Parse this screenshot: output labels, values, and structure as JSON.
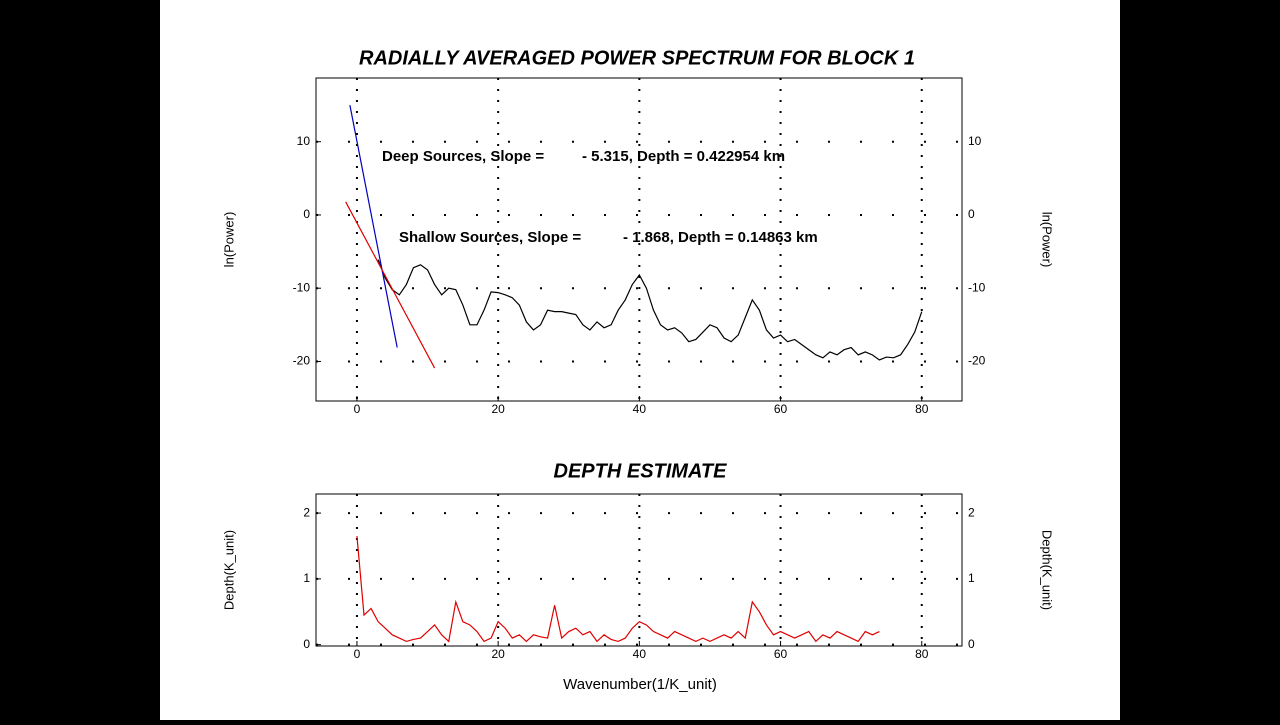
{
  "chart_data": [
    {
      "type": "line",
      "title": "RADIALLY AVERAGED POWER SPECTRUM FOR BLOCK 1",
      "y_label": "ln(Power)",
      "xlim": [
        -5.8,
        85.7
      ],
      "xticks": [
        0,
        20,
        40,
        60,
        80
      ],
      "ylim": [
        -25.4,
        18.7
      ],
      "yticks": [
        -20,
        -10,
        0,
        10
      ],
      "grid": true,
      "series": [
        {
          "color": "#000000",
          "x": [
            3,
            4,
            5,
            6,
            7,
            8,
            9,
            10,
            11,
            12,
            13,
            14,
            15,
            16,
            17,
            18,
            19,
            20,
            21,
            22,
            23,
            24,
            25,
            26,
            27,
            28,
            29,
            30,
            31,
            32,
            33,
            34,
            35,
            36,
            37,
            38,
            39,
            40,
            41,
            42,
            43,
            44,
            45,
            46,
            47,
            48,
            49,
            50,
            51,
            52,
            53,
            54,
            55,
            56,
            57,
            58,
            59,
            60,
            61,
            62,
            63,
            64,
            65,
            66,
            67,
            68,
            69,
            70,
            71,
            72,
            73,
            74,
            75,
            76,
            77,
            78,
            79,
            80
          ],
          "values": [
            -6.1,
            -8.6,
            -10.2,
            -10.9,
            -9.5,
            -7.2,
            -6.8,
            -7.5,
            -9.5,
            -10.9,
            -10,
            -10.2,
            -12.3,
            -15,
            -15,
            -13,
            -10.5,
            -10.6,
            -10.9,
            -11.3,
            -12.3,
            -14.6,
            -15.7,
            -15,
            -13,
            -13.2,
            -13.2,
            -13.4,
            -13.6,
            -15,
            -15.7,
            -14.6,
            -15.4,
            -15,
            -13,
            -11.6,
            -9.5,
            -8.2,
            -10,
            -13,
            -15,
            -15.7,
            -15.4,
            -16.1,
            -17.3,
            -17,
            -16,
            -15,
            -15.4,
            -16.8,
            -17.3,
            -16.4,
            -14,
            -11.6,
            -13,
            -15.7,
            -16.8,
            -16.4,
            -17.3,
            -17,
            -17.7,
            -18.4,
            -19.1,
            -19.5,
            -18.7,
            -19.1,
            -18.4,
            -18.1,
            -19.1,
            -18.7,
            -19.1,
            -19.8,
            -19.4,
            -19.5,
            -19.1,
            -17.7,
            -16,
            -13.2
          ]
        },
        {
          "color": "#0000c0",
          "x": [
            -1.0,
            5.7
          ],
          "values": [
            15,
            -18.1
          ]
        },
        {
          "color": "#e00000",
          "x": [
            -1.6,
            11.0
          ],
          "values": [
            1.8,
            -20.9
          ]
        }
      ],
      "annotations": [
        {
          "label": "Deep Sources, Slope =",
          "text": "- 5.315,  Depth = 0.422954 km",
          "color": "#0000c0"
        },
        {
          "label": "Shallow Sources, Slope =",
          "text": "- 1.868,  Depth = 0.14863 km",
          "color": "#e00000"
        }
      ]
    },
    {
      "type": "line",
      "title": "DEPTH ESTIMATE",
      "y_label": "Depth(K_unit)",
      "x_label": "Wavenumber(1/K_unit)",
      "xlim": [
        -5.8,
        85.7
      ],
      "xticks": [
        0,
        20,
        40,
        60,
        80
      ],
      "ylim": [
        -0.02,
        2.29
      ],
      "yticks": [
        0,
        1,
        2
      ],
      "grid": true,
      "series": [
        {
          "color": "#e00000",
          "x": [
            0,
            1,
            2,
            3,
            4,
            5,
            6,
            7,
            8,
            9,
            10,
            11,
            12,
            13,
            14,
            15,
            16,
            17,
            18,
            19,
            20,
            21,
            22,
            23,
            24,
            25,
            26,
            27,
            28,
            29,
            30,
            31,
            32,
            33,
            34,
            35,
            36,
            37,
            38,
            39,
            40,
            41,
            42,
            43,
            44,
            45,
            46,
            47,
            48,
            49,
            50,
            51,
            52,
            53,
            54,
            55,
            56,
            57,
            58,
            59,
            60,
            61,
            62,
            63,
            64,
            65,
            66,
            67,
            68,
            69,
            70,
            71,
            72,
            73,
            74
          ],
          "values": [
            1.65,
            0.45,
            0.55,
            0.35,
            0.25,
            0.15,
            0.1,
            0.05,
            0.08,
            0.1,
            0.2,
            0.3,
            0.15,
            0.05,
            0.65,
            0.35,
            0.3,
            0.2,
            0.05,
            0.1,
            0.35,
            0.25,
            0.1,
            0.15,
            0.05,
            0.15,
            0.12,
            0.1,
            0.6,
            0.1,
            0.2,
            0.25,
            0.15,
            0.2,
            0.05,
            0.15,
            0.08,
            0.05,
            0.1,
            0.25,
            0.35,
            0.3,
            0.2,
            0.15,
            0.1,
            0.2,
            0.15,
            0.1,
            0.05,
            0.1,
            0.05,
            0.1,
            0.15,
            0.1,
            0.2,
            0.1,
            0.65,
            0.5,
            0.3,
            0.15,
            0.2,
            0.15,
            0.1,
            0.15,
            0.2,
            0.05,
            0.15,
            0.1,
            0.2,
            0.15,
            0.1,
            0.05,
            0.2,
            0.15,
            0.2
          ]
        }
      ]
    }
  ]
}
